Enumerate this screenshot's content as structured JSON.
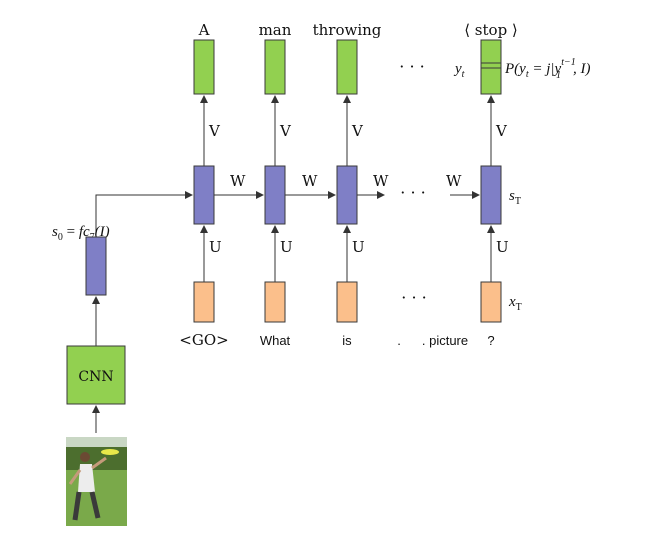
{
  "outputs": [
    "A",
    "man",
    "throwing",
    "⟨ stop ⟩"
  ],
  "inputs": [
    "<GO>",
    "What",
    "is",
    ". picture",
    "?"
  ],
  "input_dots_mid": ".",
  "dots": "· · ·",
  "labels": {
    "V": "V",
    "W": "W",
    "U": "U",
    "cnn": "CNN",
    "s0_lhs": "s",
    "s0_sub": "0",
    "s0_eq": " = ",
    "s0_rhs": "fc",
    "s0_rhs_sub": "7",
    "s0_rhs_arg": "(I)",
    "yt": "y",
    "yt_sub": "t",
    "sT": "s",
    "sT_sub": "T",
    "xT": "x",
    "xT_sub": "T",
    "prob": "P(y",
    "prob_sub": "t",
    "prob_mid": " = j|y",
    "prob_sup": "t−1",
    "prob_sub2": "1",
    "prob_end": ", I)"
  },
  "colors": {
    "output_box": "#92d050",
    "hidden_box": "#7f7fc6",
    "input_box": "#fbbf8b"
  },
  "photo": {
    "icon": "frisbee-player-photo"
  }
}
